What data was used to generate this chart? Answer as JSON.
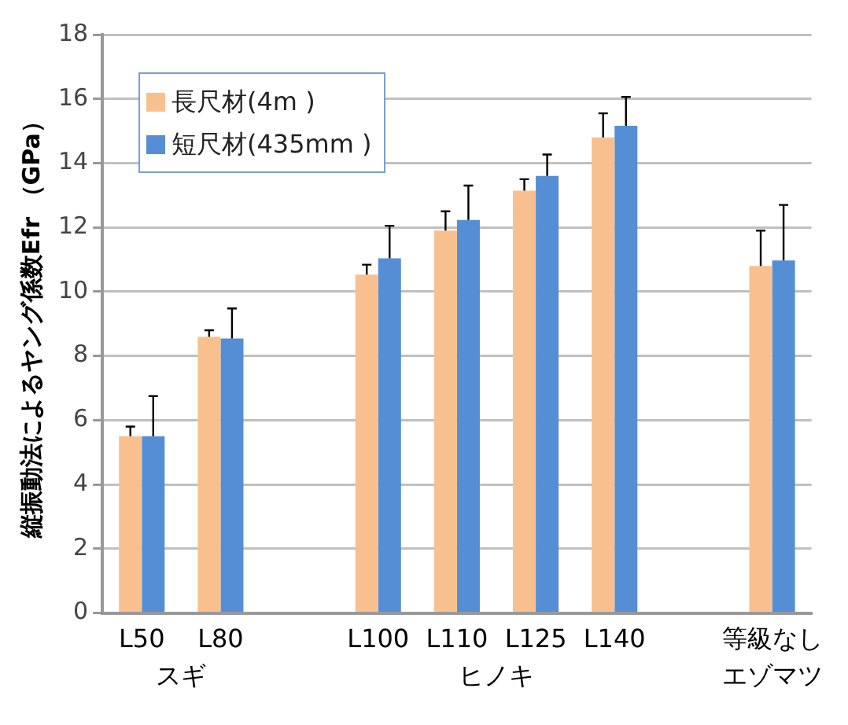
{
  "chart_data": {
    "type": "bar",
    "ylabel": "縦振動法によるヤング係数Efr （GPa）",
    "categories": [
      "L50",
      "L80",
      null,
      "L100",
      "L110",
      "L125",
      "L140",
      null,
      "等級なし"
    ],
    "series": [
      {
        "name": "長尺材(4m )",
        "color": "#f9c08f",
        "values": [
          5.5,
          8.6,
          null,
          10.53,
          11.9,
          13.14,
          14.8,
          null,
          10.8
        ],
        "errors": [
          [
            5.5,
            5.8
          ],
          [
            8.6,
            8.8
          ],
          null,
          [
            10.53,
            10.84
          ],
          [
            11.9,
            12.5
          ],
          [
            13.14,
            13.5
          ],
          [
            14.8,
            15.55
          ],
          null,
          [
            10.8,
            11.9
          ]
        ]
      },
      {
        "name": "短尺材(435mm )",
        "color": "#558ed5",
        "values": [
          5.5,
          8.54,
          null,
          11.04,
          12.23,
          13.6,
          15.16,
          null,
          10.97
        ],
        "errors": [
          [
            5.5,
            6.75
          ],
          [
            8.54,
            9.48
          ],
          null,
          [
            11.04,
            12.05
          ],
          [
            12.23,
            13.3
          ],
          [
            13.6,
            14.27
          ],
          [
            15.16,
            16.06
          ],
          null,
          [
            10.97,
            12.7
          ]
        ]
      }
    ],
    "ylim": [
      0,
      18
    ],
    "yticks": [
      0,
      2,
      4,
      6,
      8,
      10,
      12,
      14,
      16,
      18
    ],
    "grid": "y",
    "legend": "top left",
    "annotations": [
      "スギ",
      "ヒノキ",
      "エゾマツ"
    ]
  }
}
